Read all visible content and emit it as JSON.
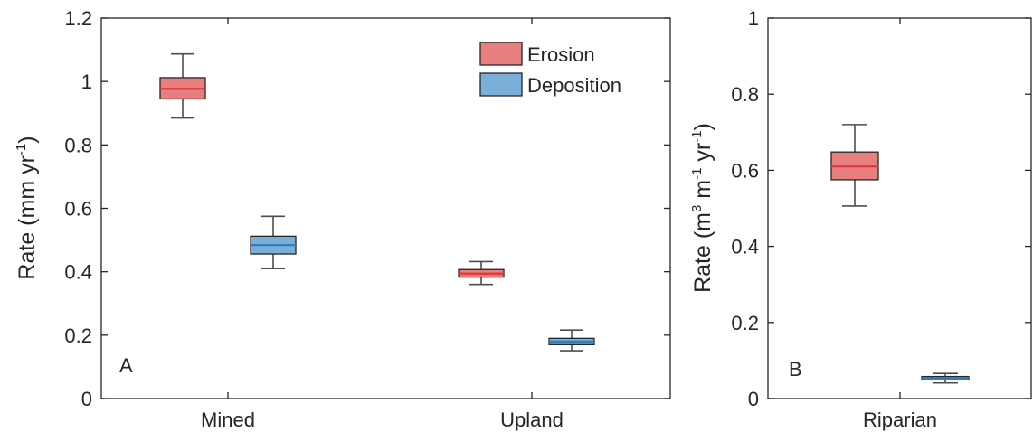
{
  "colors": {
    "erosion": "#e77f7f",
    "erosion_median": "#e4353a",
    "deposition": "#7aafd8",
    "deposition_median": "#2d7dc1"
  },
  "chart_data": [
    {
      "type": "box",
      "panel": "A",
      "ylabel": "Rate (mm yr",
      "ylabel_sup": "-1",
      "ylabel_close": ")",
      "ylim": [
        0,
        1.2
      ],
      "yticks": [
        0,
        0.2,
        0.4,
        0.6,
        0.8,
        1,
        1.2
      ],
      "yticklabels": [
        "0",
        "0.2",
        "0.4",
        "0.6",
        "0.8",
        "1",
        "1.2"
      ],
      "categories": [
        "Mined",
        "Upland"
      ],
      "legend": {
        "location": "top-right",
        "entries": [
          "Erosion",
          "Deposition"
        ]
      },
      "series": [
        {
          "name": "Erosion",
          "boxes": [
            {
              "category": "Mined",
              "min": 0.885,
              "q1": 0.945,
              "median": 0.977,
              "q3": 1.012,
              "max": 1.087
            },
            {
              "category": "Upland",
              "min": 0.36,
              "q1": 0.383,
              "median": 0.394,
              "q3": 0.407,
              "max": 0.432
            }
          ]
        },
        {
          "name": "Deposition",
          "boxes": [
            {
              "category": "Mined",
              "min": 0.41,
              "q1": 0.456,
              "median": 0.484,
              "q3": 0.512,
              "max": 0.575
            },
            {
              "category": "Upland",
              "min": 0.151,
              "q1": 0.17,
              "median": 0.18,
              "q3": 0.19,
              "max": 0.216
            }
          ]
        }
      ]
    },
    {
      "type": "box",
      "panel": "B",
      "ylabel": "Rate (m",
      "ylabel_sup1": "3",
      "ylabel_mid": " m",
      "ylabel_sup2": "-1",
      "ylabel_end": " yr",
      "ylabel_sup3": "-1",
      "ylabel_close": ")",
      "ylim": [
        0,
        1
      ],
      "yticks": [
        0,
        0.2,
        0.4,
        0.6,
        0.8,
        1
      ],
      "yticklabels": [
        "0",
        "0.2",
        "0.4",
        "0.6",
        "0.8",
        "1"
      ],
      "categories": [
        "Riparian"
      ],
      "series": [
        {
          "name": "Erosion",
          "boxes": [
            {
              "category": "Riparian",
              "min": 0.506,
              "q1": 0.575,
              "median": 0.61,
              "q3": 0.648,
              "max": 0.72
            }
          ]
        },
        {
          "name": "Deposition",
          "boxes": [
            {
              "category": "Riparian",
              "min": 0.041,
              "q1": 0.049,
              "median": 0.054,
              "q3": 0.058,
              "max": 0.066
            }
          ]
        }
      ]
    }
  ]
}
